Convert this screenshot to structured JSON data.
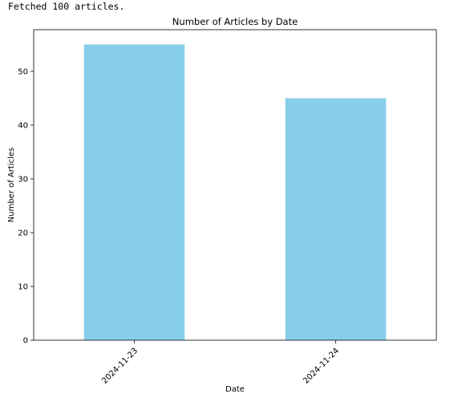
{
  "console": {
    "output_text": "Fetched 100 articles."
  },
  "chart_data": {
    "type": "bar",
    "title": "Number of Articles by Date",
    "xlabel": "Date",
    "ylabel": "Number of Articles",
    "categories": [
      "2024-11-23",
      "2024-11-24"
    ],
    "values": [
      55,
      45
    ],
    "ylim": [
      0,
      57.75
    ],
    "yticks": [
      0,
      10,
      20,
      30,
      40,
      50
    ],
    "bar_color": "#87CEEB",
    "grid": false,
    "legend": "none"
  }
}
